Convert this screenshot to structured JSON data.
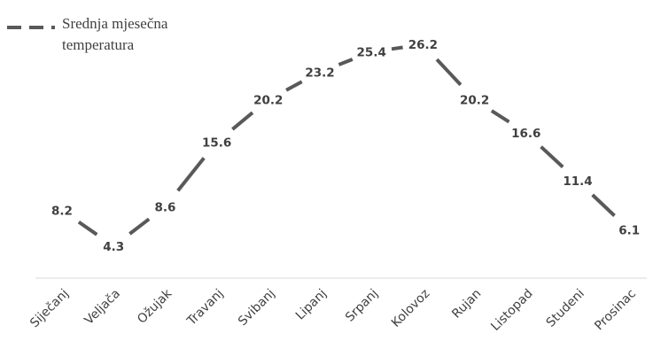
{
  "chart_data": {
    "type": "line",
    "categories": [
      "Siječanj",
      "Veljača",
      "Ožujak",
      "Travanj",
      "Svibanj",
      "Lipanj",
      "Srpanj",
      "Kolovoz",
      "Rujan",
      "Listopad",
      "Studeni",
      "Prosinac"
    ],
    "series": [
      {
        "name": "Srednja mjesečna temperatura",
        "values": [
          8.2,
          4.3,
          8.6,
          15.6,
          20.2,
          23.2,
          25.4,
          26.2,
          20.2,
          16.6,
          11.4,
          6.1
        ],
        "color": "#595959",
        "dashed": true
      }
    ],
    "data_labels": [
      "8.2",
      "4.3",
      "8.6",
      "15.6",
      "20.2",
      "23.2",
      "25.4",
      "26.2",
      "20.2",
      "16.6",
      "11.4",
      "6.1"
    ],
    "legend": {
      "lines": [
        "Srednja mjesečna",
        "temperatura"
      ],
      "position": "top-left"
    },
    "title": "",
    "xlabel": "",
    "ylabel": "",
    "grid": false,
    "axis_color": "#d9d9d9"
  }
}
